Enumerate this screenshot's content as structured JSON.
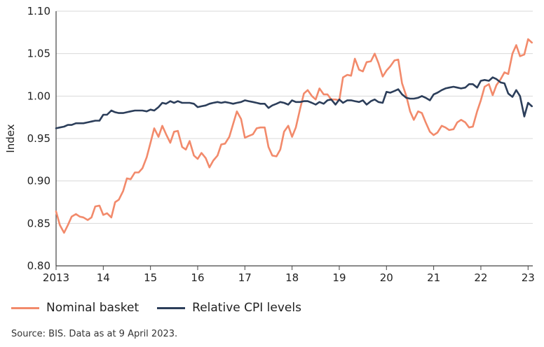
{
  "chart_data": {
    "type": "line",
    "ylabel": "Index",
    "ylim": [
      0.8,
      1.1
    ],
    "yticks": [
      "0.80",
      "0.85",
      "0.90",
      "0.95",
      "1.00",
      "1.05",
      "1.10"
    ],
    "xlim": [
      2013,
      2023.1
    ],
    "xticks": [
      {
        "x": 2013,
        "label": "2013"
      },
      {
        "x": 2014,
        "label": "14"
      },
      {
        "x": 2015,
        "label": "15"
      },
      {
        "x": 2016,
        "label": "16"
      },
      {
        "x": 2017,
        "label": "17"
      },
      {
        "x": 2018,
        "label": "18"
      },
      {
        "x": 2019,
        "label": "19"
      },
      {
        "x": 2020,
        "label": "20"
      },
      {
        "x": 2021,
        "label": "21"
      },
      {
        "x": 2022,
        "label": "22"
      },
      {
        "x": 2023,
        "label": "23"
      }
    ],
    "series": [
      {
        "name": "Nominal basket",
        "color": "#f28a6b",
        "points": [
          [
            2013.0,
            0.864
          ],
          [
            2013.08,
            0.848
          ],
          [
            2013.17,
            0.839
          ],
          [
            2013.25,
            0.848
          ],
          [
            2013.33,
            0.858
          ],
          [
            2013.42,
            0.861
          ],
          [
            2013.5,
            0.858
          ],
          [
            2013.58,
            0.857
          ],
          [
            2013.67,
            0.854
          ],
          [
            2013.75,
            0.857
          ],
          [
            2013.83,
            0.87
          ],
          [
            2013.92,
            0.871
          ],
          [
            2014.0,
            0.86
          ],
          [
            2014.08,
            0.862
          ],
          [
            2014.17,
            0.857
          ],
          [
            2014.25,
            0.875
          ],
          [
            2014.33,
            0.878
          ],
          [
            2014.42,
            0.888
          ],
          [
            2014.5,
            0.903
          ],
          [
            2014.58,
            0.902
          ],
          [
            2014.67,
            0.91
          ],
          [
            2014.75,
            0.91
          ],
          [
            2014.83,
            0.915
          ],
          [
            2014.92,
            0.928
          ],
          [
            2015.0,
            0.945
          ],
          [
            2015.08,
            0.962
          ],
          [
            2015.17,
            0.952
          ],
          [
            2015.25,
            0.965
          ],
          [
            2015.33,
            0.955
          ],
          [
            2015.42,
            0.945
          ],
          [
            2015.5,
            0.958
          ],
          [
            2015.58,
            0.959
          ],
          [
            2015.67,
            0.94
          ],
          [
            2015.75,
            0.937
          ],
          [
            2015.83,
            0.947
          ],
          [
            2015.92,
            0.93
          ],
          [
            2016.0,
            0.926
          ],
          [
            2016.08,
            0.933
          ],
          [
            2016.17,
            0.927
          ],
          [
            2016.25,
            0.916
          ],
          [
            2016.33,
            0.924
          ],
          [
            2016.42,
            0.93
          ],
          [
            2016.5,
            0.943
          ],
          [
            2016.58,
            0.944
          ],
          [
            2016.67,
            0.952
          ],
          [
            2016.75,
            0.967
          ],
          [
            2016.83,
            0.982
          ],
          [
            2016.92,
            0.973
          ],
          [
            2017.0,
            0.951
          ],
          [
            2017.08,
            0.953
          ],
          [
            2017.17,
            0.955
          ],
          [
            2017.25,
            0.962
          ],
          [
            2017.33,
            0.963
          ],
          [
            2017.42,
            0.963
          ],
          [
            2017.5,
            0.94
          ],
          [
            2017.58,
            0.93
          ],
          [
            2017.67,
            0.929
          ],
          [
            2017.75,
            0.937
          ],
          [
            2017.83,
            0.958
          ],
          [
            2017.92,
            0.965
          ],
          [
            2018.0,
            0.952
          ],
          [
            2018.08,
            0.963
          ],
          [
            2018.17,
            0.985
          ],
          [
            2018.25,
            1.003
          ],
          [
            2018.33,
            1.007
          ],
          [
            2018.42,
            1.0
          ],
          [
            2018.5,
            0.996
          ],
          [
            2018.58,
            1.009
          ],
          [
            2018.67,
            1.002
          ],
          [
            2018.75,
            1.002
          ],
          [
            2018.83,
            0.996
          ],
          [
            2018.92,
            0.996
          ],
          [
            2019.0,
            0.995
          ],
          [
            2019.08,
            1.022
          ],
          [
            2019.17,
            1.025
          ],
          [
            2019.25,
            1.024
          ],
          [
            2019.33,
            1.044
          ],
          [
            2019.42,
            1.031
          ],
          [
            2019.5,
            1.029
          ],
          [
            2019.58,
            1.04
          ],
          [
            2019.67,
            1.041
          ],
          [
            2019.75,
            1.05
          ],
          [
            2019.83,
            1.039
          ],
          [
            2019.92,
            1.023
          ],
          [
            2020.0,
            1.03
          ],
          [
            2020.08,
            1.035
          ],
          [
            2020.17,
            1.042
          ],
          [
            2020.25,
            1.043
          ],
          [
            2020.33,
            1.015
          ],
          [
            2020.42,
            1.0
          ],
          [
            2020.5,
            0.982
          ],
          [
            2020.58,
            0.972
          ],
          [
            2020.67,
            0.982
          ],
          [
            2020.75,
            0.98
          ],
          [
            2020.83,
            0.969
          ],
          [
            2020.92,
            0.958
          ],
          [
            2021.0,
            0.954
          ],
          [
            2021.08,
            0.957
          ],
          [
            2021.17,
            0.965
          ],
          [
            2021.25,
            0.963
          ],
          [
            2021.33,
            0.96
          ],
          [
            2021.42,
            0.961
          ],
          [
            2021.5,
            0.969
          ],
          [
            2021.58,
            0.972
          ],
          [
            2021.67,
            0.969
          ],
          [
            2021.75,
            0.963
          ],
          [
            2021.83,
            0.964
          ],
          [
            2021.92,
            0.982
          ],
          [
            2022.0,
            0.995
          ],
          [
            2022.08,
            1.011
          ],
          [
            2022.17,
            1.014
          ],
          [
            2022.25,
            1.001
          ],
          [
            2022.33,
            1.013
          ],
          [
            2022.42,
            1.02
          ],
          [
            2022.5,
            1.028
          ],
          [
            2022.58,
            1.026
          ],
          [
            2022.67,
            1.05
          ],
          [
            2022.75,
            1.06
          ],
          [
            2022.83,
            1.047
          ],
          [
            2022.92,
            1.049
          ],
          [
            2023.0,
            1.067
          ],
          [
            2023.08,
            1.063
          ]
        ]
      },
      {
        "name": "Relative CPI levels",
        "color": "#2c3e5a",
        "points": [
          [
            2013.0,
            0.962
          ],
          [
            2013.08,
            0.963
          ],
          [
            2013.17,
            0.964
          ],
          [
            2013.25,
            0.966
          ],
          [
            2013.33,
            0.966
          ],
          [
            2013.42,
            0.968
          ],
          [
            2013.5,
            0.968
          ],
          [
            2013.58,
            0.968
          ],
          [
            2013.67,
            0.969
          ],
          [
            2013.75,
            0.97
          ],
          [
            2013.83,
            0.971
          ],
          [
            2013.92,
            0.971
          ],
          [
            2014.0,
            0.978
          ],
          [
            2014.08,
            0.978
          ],
          [
            2014.17,
            0.983
          ],
          [
            2014.25,
            0.981
          ],
          [
            2014.33,
            0.98
          ],
          [
            2014.42,
            0.98
          ],
          [
            2014.5,
            0.981
          ],
          [
            2014.58,
            0.982
          ],
          [
            2014.67,
            0.983
          ],
          [
            2014.75,
            0.983
          ],
          [
            2014.83,
            0.983
          ],
          [
            2014.92,
            0.982
          ],
          [
            2015.0,
            0.984
          ],
          [
            2015.08,
            0.983
          ],
          [
            2015.17,
            0.987
          ],
          [
            2015.25,
            0.992
          ],
          [
            2015.33,
            0.991
          ],
          [
            2015.42,
            0.994
          ],
          [
            2015.5,
            0.992
          ],
          [
            2015.58,
            0.994
          ],
          [
            2015.67,
            0.992
          ],
          [
            2015.75,
            0.992
          ],
          [
            2015.83,
            0.992
          ],
          [
            2015.92,
            0.991
          ],
          [
            2016.0,
            0.987
          ],
          [
            2016.08,
            0.988
          ],
          [
            2016.17,
            0.989
          ],
          [
            2016.25,
            0.991
          ],
          [
            2016.33,
            0.992
          ],
          [
            2016.42,
            0.993
          ],
          [
            2016.5,
            0.992
          ],
          [
            2016.58,
            0.993
          ],
          [
            2016.67,
            0.992
          ],
          [
            2016.75,
            0.991
          ],
          [
            2016.83,
            0.992
          ],
          [
            2016.92,
            0.993
          ],
          [
            2017.0,
            0.995
          ],
          [
            2017.08,
            0.994
          ],
          [
            2017.17,
            0.993
          ],
          [
            2017.25,
            0.992
          ],
          [
            2017.33,
            0.991
          ],
          [
            2017.42,
            0.991
          ],
          [
            2017.5,
            0.986
          ],
          [
            2017.58,
            0.989
          ],
          [
            2017.67,
            0.991
          ],
          [
            2017.75,
            0.993
          ],
          [
            2017.83,
            0.992
          ],
          [
            2017.92,
            0.99
          ],
          [
            2018.0,
            0.995
          ],
          [
            2018.08,
            0.993
          ],
          [
            2018.17,
            0.993
          ],
          [
            2018.25,
            0.994
          ],
          [
            2018.33,
            0.994
          ],
          [
            2018.42,
            0.992
          ],
          [
            2018.5,
            0.99
          ],
          [
            2018.58,
            0.993
          ],
          [
            2018.67,
            0.991
          ],
          [
            2018.75,
            0.995
          ],
          [
            2018.83,
            0.996
          ],
          [
            2018.92,
            0.99
          ],
          [
            2019.0,
            0.996
          ],
          [
            2019.08,
            0.992
          ],
          [
            2019.17,
            0.995
          ],
          [
            2019.25,
            0.995
          ],
          [
            2019.33,
            0.994
          ],
          [
            2019.42,
            0.993
          ],
          [
            2019.5,
            0.995
          ],
          [
            2019.58,
            0.99
          ],
          [
            2019.67,
            0.994
          ],
          [
            2019.75,
            0.996
          ],
          [
            2019.83,
            0.993
          ],
          [
            2019.92,
            0.992
          ],
          [
            2020.0,
            1.005
          ],
          [
            2020.08,
            1.004
          ],
          [
            2020.17,
            1.006
          ],
          [
            2020.25,
            1.008
          ],
          [
            2020.33,
            1.002
          ],
          [
            2020.42,
            0.998
          ],
          [
            2020.5,
            0.997
          ],
          [
            2020.58,
            0.997
          ],
          [
            2020.67,
            0.998
          ],
          [
            2020.75,
            1.0
          ],
          [
            2020.83,
            0.998
          ],
          [
            2020.92,
            0.995
          ],
          [
            2021.0,
            1.002
          ],
          [
            2021.08,
            1.004
          ],
          [
            2021.17,
            1.007
          ],
          [
            2021.25,
            1.009
          ],
          [
            2021.33,
            1.01
          ],
          [
            2021.42,
            1.011
          ],
          [
            2021.5,
            1.01
          ],
          [
            2021.58,
            1.009
          ],
          [
            2021.67,
            1.01
          ],
          [
            2021.75,
            1.014
          ],
          [
            2021.83,
            1.014
          ],
          [
            2021.92,
            1.01
          ],
          [
            2022.0,
            1.018
          ],
          [
            2022.08,
            1.019
          ],
          [
            2022.17,
            1.018
          ],
          [
            2022.25,
            1.022
          ],
          [
            2022.33,
            1.02
          ],
          [
            2022.42,
            1.016
          ],
          [
            2022.5,
            1.015
          ],
          [
            2022.58,
            1.003
          ],
          [
            2022.67,
            0.999
          ],
          [
            2022.75,
            1.007
          ],
          [
            2022.83,
            1.0
          ],
          [
            2022.92,
            0.976
          ],
          [
            2023.0,
            0.992
          ],
          [
            2023.08,
            0.988
          ]
        ]
      }
    ]
  },
  "legend": {
    "items": [
      {
        "label": "Nominal basket",
        "color": "#f28a6b"
      },
      {
        "label": "Relative CPI levels",
        "color": "#2c3e5a"
      }
    ]
  },
  "source": "Source: BIS. Data as at 9 April 2023."
}
